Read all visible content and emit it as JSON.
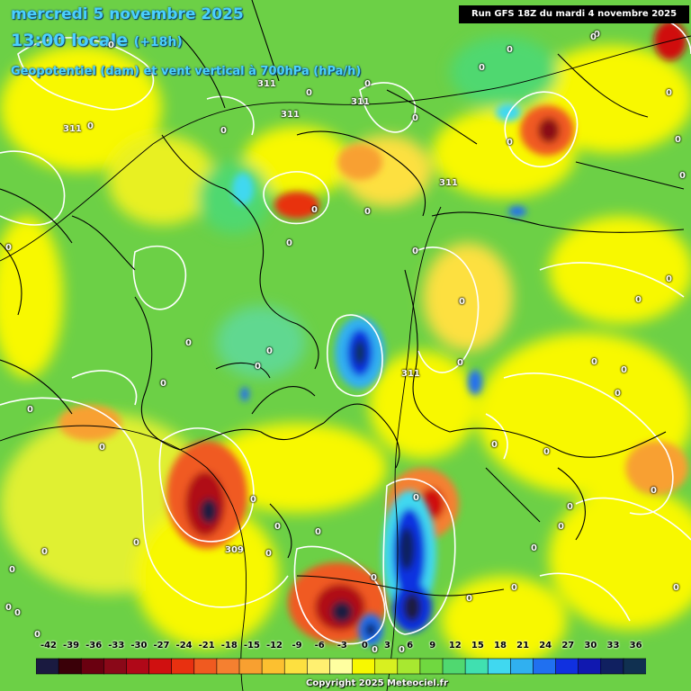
{
  "header": {
    "date_line": "mercredi 5 novembre 2025",
    "time_line": "13:00 locale",
    "forecast_offset": "(+18h)",
    "parameter_line": "Geopotentiel (dam) et vent vertical à 700hPa (hPa/h)"
  },
  "run_banner": "Run GFS 18Z du mardi 4 novembre 2025",
  "legend": {
    "ticks": [
      "-42",
      "-39",
      "-36",
      "-33",
      "-30",
      "-27",
      "-24",
      "-21",
      "-18",
      "-15",
      "-12",
      "-9",
      "-6",
      "-3",
      "0",
      "3",
      "6",
      "9",
      "12",
      "15",
      "18",
      "21",
      "24",
      "27",
      "30",
      "33",
      "36"
    ],
    "colors": [
      "#1a1a40",
      "#3a0008",
      "#6a0010",
      "#8a0818",
      "#b00818",
      "#d01010",
      "#e83010",
      "#f05a20",
      "#f58030",
      "#f8a030",
      "#fcc030",
      "#fde040",
      "#fff070",
      "#ffffa0",
      "#f8f800",
      "#d8f020",
      "#a8e830",
      "#70d840",
      "#50d870",
      "#40e0b0",
      "#40d8f0",
      "#30b0f0",
      "#2070f0",
      "#1030e0",
      "#1018b0",
      "#102060",
      "#103050"
    ]
  },
  "geopotential_labels": [
    "311",
    "311",
    "311",
    "311",
    "311",
    "311",
    "309"
  ],
  "zero_labels": [
    "0",
    "0",
    "0",
    "0",
    "0",
    "0",
    "0",
    "0",
    "0",
    "0",
    "0",
    "0",
    "0",
    "0",
    "0",
    "0",
    "0",
    "0",
    "0",
    "0",
    "0",
    "0",
    "0",
    "0",
    "0",
    "0",
    "0",
    "0",
    "0",
    "0",
    "0",
    "0",
    "0",
    "0",
    "0",
    "0",
    "0",
    "0",
    "0",
    "0",
    "0",
    "0",
    "0",
    "0",
    "0",
    "0",
    "0",
    "0",
    "0",
    "0",
    "0",
    "0",
    "0",
    "0",
    "0"
  ],
  "copyright": "Copyright 2025 Meteociel.fr"
}
